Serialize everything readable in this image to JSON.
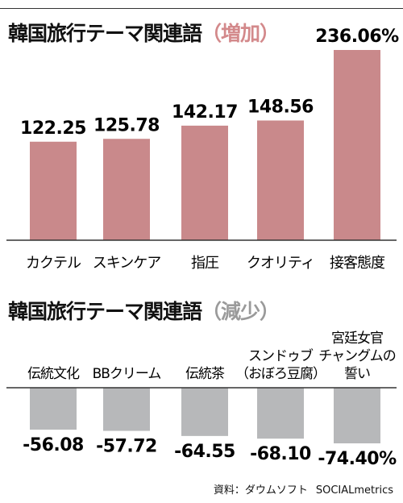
{
  "colors": {
    "increase": "#c9898b",
    "decrease": "#b7b8ba",
    "axis": "#333333"
  },
  "chart_data": [
    {
      "type": "bar",
      "title": "韓国旅行テーマ関連語",
      "subtitle": "（増加）",
      "categories": [
        [
          "カクテル"
        ],
        [
          "スキンケア"
        ],
        [
          "指圧"
        ],
        [
          "クオリティ"
        ],
        [
          "接客態度"
        ]
      ],
      "values": [
        122.25,
        125.78,
        142.17,
        148.56,
        236.06
      ],
      "value_labels": [
        "122.25",
        "125.78",
        "142.17",
        "148.56",
        "236.06%"
      ],
      "ylim": [
        0,
        240
      ]
    },
    {
      "type": "bar",
      "title": "韓国旅行テーマ関連語",
      "subtitle": "（減少）",
      "categories": [
        [
          "伝統文化"
        ],
        [
          "BBクリーム"
        ],
        [
          "伝統茶"
        ],
        [
          "スンドゥブ",
          "（おぼろ豆腐）"
        ],
        [
          "宮廷女官",
          "チャングムの",
          "誓い"
        ]
      ],
      "values": [
        -56.08,
        -57.72,
        -64.55,
        -68.1,
        -74.4
      ],
      "value_labels": [
        "-56.08",
        "-57.72",
        "-64.55",
        "-68.10",
        "-74.40%"
      ],
      "ylim": [
        -80,
        0
      ]
    }
  ],
  "source": {
    "label": "資料：ダウムソフト",
    "value": "SOCIALmetrics"
  }
}
